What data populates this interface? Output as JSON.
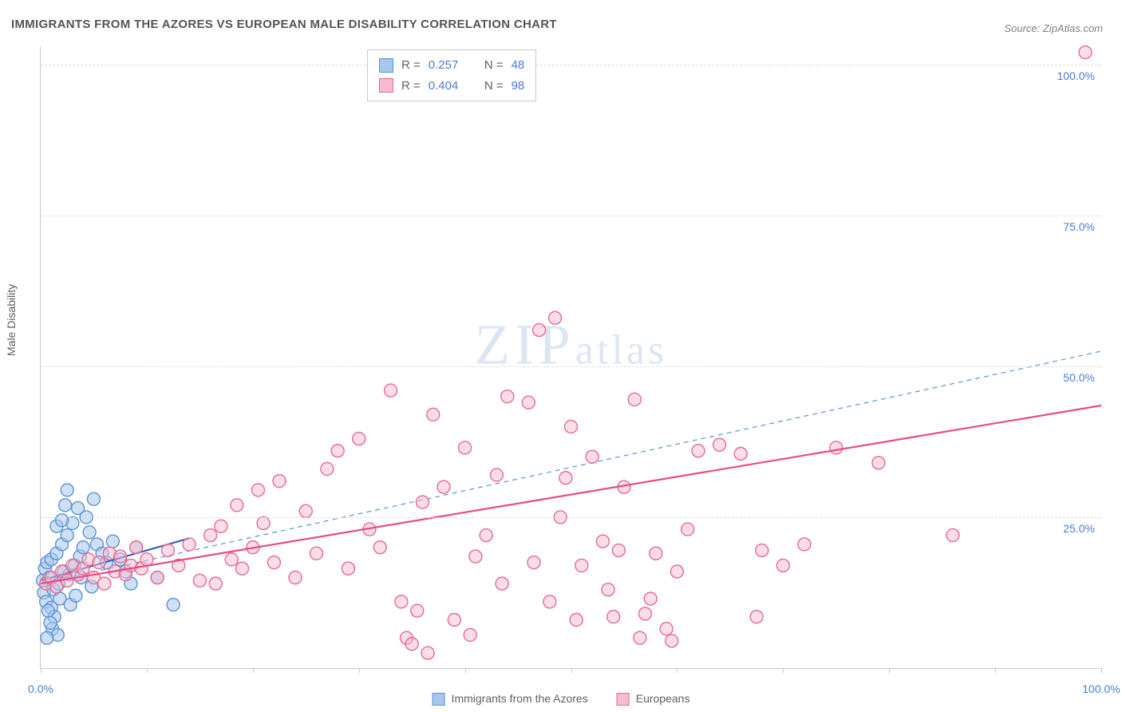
{
  "title": "IMMIGRANTS FROM THE AZORES VS EUROPEAN MALE DISABILITY CORRELATION CHART",
  "source": "Source: ZipAtlas.com",
  "y_axis_label": "Male Disability",
  "watermark_a": "ZIP",
  "watermark_b": "atlas",
  "chart": {
    "type": "scatter",
    "background_color": "#ffffff",
    "grid_color": "#dcdcdc",
    "axis_color": "#c9c9c9",
    "text_color": "#606060",
    "value_color": "#4a7bd8",
    "xlim": [
      0,
      100
    ],
    "ylim": [
      0,
      103
    ],
    "x_ticks": [
      0,
      10,
      20,
      30,
      40,
      50,
      60,
      70,
      80,
      90,
      100
    ],
    "x_tick_labels": {
      "0": "0.0%",
      "100": "100.0%"
    },
    "y_ticks": [
      25,
      50,
      75,
      100
    ],
    "y_tick_labels": {
      "25": "25.0%",
      "50": "50.0%",
      "75": "75.0%",
      "100": "100.0%"
    },
    "marker_radius": 8,
    "marker_stroke_width": 1.4,
    "series": [
      {
        "key": "azores",
        "label": "Immigrants from the Azores",
        "fill": "#a8c7ec",
        "stroke": "#5a93d8",
        "fill_opacity": 0.55,
        "R": "0.257",
        "N": "48",
        "points": [
          [
            0.2,
            14.5
          ],
          [
            0.4,
            16.5
          ],
          [
            0.3,
            12.5
          ],
          [
            0.6,
            17.5
          ],
          [
            0.8,
            15.0
          ],
          [
            1.0,
            18.0
          ],
          [
            1.2,
            13.0
          ],
          [
            0.5,
            11.0
          ],
          [
            1.5,
            19.0
          ],
          [
            1.7,
            14.0
          ],
          [
            2.0,
            20.5
          ],
          [
            2.2,
            16.0
          ],
          [
            2.5,
            22.0
          ],
          [
            2.7,
            15.5
          ],
          [
            1.0,
            10.0
          ],
          [
            1.3,
            8.5
          ],
          [
            0.7,
            9.5
          ],
          [
            1.8,
            11.5
          ],
          [
            3.0,
            24.0
          ],
          [
            3.2,
            17.0
          ],
          [
            3.5,
            26.5
          ],
          [
            3.7,
            18.5
          ],
          [
            4.0,
            20.0
          ],
          [
            4.3,
            25.0
          ],
          [
            4.6,
            22.5
          ],
          [
            5.0,
            28.0
          ],
          [
            5.3,
            20.5
          ],
          [
            2.3,
            27.0
          ],
          [
            1.5,
            23.5
          ],
          [
            2.0,
            24.5
          ],
          [
            5.8,
            19.0
          ],
          [
            6.2,
            17.5
          ],
          [
            1.1,
            6.5
          ],
          [
            0.9,
            7.5
          ],
          [
            2.8,
            10.5
          ],
          [
            3.3,
            12.0
          ],
          [
            6.8,
            21.0
          ],
          [
            7.5,
            18.0
          ],
          [
            8.0,
            16.0
          ],
          [
            8.5,
            14.0
          ],
          [
            9.0,
            20.0
          ],
          [
            2.5,
            29.5
          ],
          [
            3.8,
            15.0
          ],
          [
            4.8,
            13.5
          ],
          [
            1.6,
            5.5
          ],
          [
            0.6,
            5.0
          ],
          [
            11.0,
            15.0
          ],
          [
            12.5,
            10.5
          ]
        ],
        "trend_solid": {
          "x1": 0,
          "y1": 14.5,
          "x2": 14,
          "y2": 21.5,
          "width": 2.0,
          "color": "#2a5cb8"
        },
        "trend_dashed": {
          "x1": 0,
          "y1": 14.0,
          "x2": 100,
          "y2": 52.5,
          "width": 1.2,
          "color": "#5a93d8",
          "dash": "6,5"
        }
      },
      {
        "key": "europeans",
        "label": "Europeans",
        "fill": "#f6bccd",
        "stroke": "#e76a94",
        "fill_opacity": 0.5,
        "R": "0.404",
        "N": "98",
        "points": [
          [
            0.5,
            14.0
          ],
          [
            1.0,
            15.0
          ],
          [
            1.5,
            13.5
          ],
          [
            2.0,
            16.0
          ],
          [
            2.5,
            14.5
          ],
          [
            3.0,
            17.0
          ],
          [
            3.5,
            15.5
          ],
          [
            4.0,
            16.5
          ],
          [
            4.5,
            18.0
          ],
          [
            5.0,
            15.0
          ],
          [
            5.5,
            17.5
          ],
          [
            6.0,
            14.0
          ],
          [
            6.5,
            19.0
          ],
          [
            7.0,
            16.0
          ],
          [
            7.5,
            18.5
          ],
          [
            8.0,
            15.5
          ],
          [
            8.5,
            17.0
          ],
          [
            9.0,
            20.0
          ],
          [
            9.5,
            16.5
          ],
          [
            10.0,
            18.0
          ],
          [
            11.0,
            15.0
          ],
          [
            12.0,
            19.5
          ],
          [
            13.0,
            17.0
          ],
          [
            14.0,
            20.5
          ],
          [
            15.0,
            14.5
          ],
          [
            16.0,
            22.0
          ],
          [
            17.0,
            23.5
          ],
          [
            18.0,
            18.0
          ],
          [
            19.0,
            16.5
          ],
          [
            20.0,
            20.0
          ],
          [
            21.0,
            24.0
          ],
          [
            22.0,
            17.5
          ],
          [
            16.5,
            14.0
          ],
          [
            18.5,
            27.0
          ],
          [
            20.5,
            29.5
          ],
          [
            22.5,
            31.0
          ],
          [
            24.0,
            15.0
          ],
          [
            25.0,
            26.0
          ],
          [
            26.0,
            19.0
          ],
          [
            27.0,
            33.0
          ],
          [
            28.0,
            36.0
          ],
          [
            29.0,
            16.5
          ],
          [
            30.0,
            38.0
          ],
          [
            31.0,
            23.0
          ],
          [
            32.0,
            20.0
          ],
          [
            33.0,
            46.0
          ],
          [
            34.0,
            11.0
          ],
          [
            34.5,
            5.0
          ],
          [
            35.0,
            4.0
          ],
          [
            36.0,
            27.5
          ],
          [
            37.0,
            42.0
          ],
          [
            38.0,
            30.0
          ],
          [
            39.0,
            8.0
          ],
          [
            40.0,
            36.5
          ],
          [
            41.0,
            18.5
          ],
          [
            42.0,
            22.0
          ],
          [
            43.0,
            32.0
          ],
          [
            44.0,
            45.0
          ],
          [
            46.0,
            44.0
          ],
          [
            47.0,
            56.0
          ],
          [
            48.0,
            11.0
          ],
          [
            49.0,
            25.0
          ],
          [
            50.0,
            40.0
          ],
          [
            51.0,
            17.0
          ],
          [
            52.0,
            35.0
          ],
          [
            53.0,
            21.0
          ],
          [
            54.0,
            8.5
          ],
          [
            55.0,
            30.0
          ],
          [
            56.0,
            44.5
          ],
          [
            57.0,
            9.0
          ],
          [
            58.0,
            19.0
          ],
          [
            59.0,
            6.5
          ],
          [
            60.0,
            16.0
          ],
          [
            61.0,
            23.0
          ],
          [
            62.0,
            36.0
          ],
          [
            64.0,
            37.0
          ],
          [
            66.0,
            35.5
          ],
          [
            68.0,
            19.5
          ],
          [
            70.0,
            17.0
          ],
          [
            59.5,
            4.5
          ],
          [
            57.5,
            11.5
          ],
          [
            54.5,
            19.5
          ],
          [
            50.5,
            8.0
          ],
          [
            48.5,
            58.0
          ],
          [
            36.5,
            2.5
          ],
          [
            35.5,
            9.5
          ],
          [
            40.5,
            5.5
          ],
          [
            43.5,
            14.0
          ],
          [
            46.5,
            17.5
          ],
          [
            49.5,
            31.5
          ],
          [
            53.5,
            13.0
          ],
          [
            56.5,
            5.0
          ],
          [
            86.0,
            22.0
          ],
          [
            79.0,
            34.0
          ],
          [
            72.0,
            20.5
          ],
          [
            75.0,
            36.5
          ],
          [
            67.5,
            8.5
          ],
          [
            98.5,
            102.0
          ]
        ],
        "trend_solid": {
          "x1": 0,
          "y1": 14.0,
          "x2": 100,
          "y2": 43.5,
          "width": 2.2,
          "color": "#e94b82"
        },
        "trend_dashed": null
      }
    ],
    "top_legend": {
      "prefix_R": "R  =",
      "prefix_N": "N  ="
    }
  }
}
